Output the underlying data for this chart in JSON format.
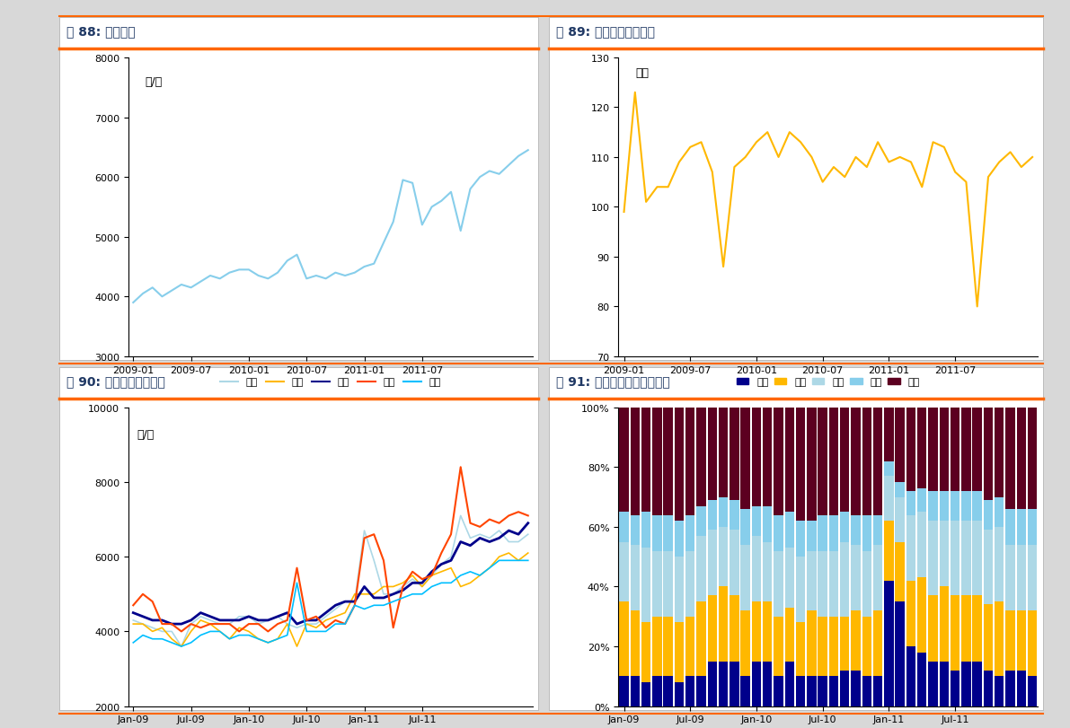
{
  "fig88_title": "图 88: 长沙均价",
  "fig89_title": "图 89: 长沙套均成交面积",
  "fig90_title": "图 90: 长沙分区成交均价",
  "fig91_title": "图 91: 长沙分区成交面积占比",
  "fig88_ylabel": "元/平",
  "fig88_ylim": [
    3000,
    8000
  ],
  "fig88_yticks": [
    3000,
    4000,
    5000,
    6000,
    7000,
    8000
  ],
  "fig88_color": "#87CEEB",
  "fig88_data": [
    3900,
    4050,
    4150,
    4000,
    4100,
    4200,
    4150,
    4250,
    4350,
    4300,
    4400,
    4450,
    4450,
    4350,
    4300,
    4400,
    4600,
    4700,
    4300,
    4350,
    4300,
    4400,
    4350,
    4400,
    4500,
    4550,
    4900,
    5250,
    5950,
    5900,
    5200,
    5500,
    5600,
    5750,
    5100,
    5800,
    6000,
    6100,
    6050,
    6200,
    6350,
    6450
  ],
  "fig89_ylabel": "平米",
  "fig89_ylim": [
    70,
    130
  ],
  "fig89_yticks": [
    70,
    80,
    90,
    100,
    110,
    120,
    130
  ],
  "fig89_color": "#FFB800",
  "fig89_data": [
    99,
    123,
    101,
    104,
    104,
    109,
    112,
    113,
    107,
    88,
    108,
    110,
    113,
    115,
    110,
    115,
    113,
    110,
    105,
    108,
    106,
    110,
    108,
    113,
    109,
    110,
    109,
    104,
    113,
    112,
    107,
    105,
    80,
    106,
    109,
    111,
    108,
    110
  ],
  "fig88_xticks": [
    "2009-01",
    "2009-07",
    "2010-01",
    "2010-07",
    "2011-01",
    "2011-07"
  ],
  "fig89_xticks": [
    "2009-01",
    "2009-07",
    "2010-01",
    "2010-07",
    "2011-01",
    "2011-07"
  ],
  "fig90_xticks": [
    "Jan-09",
    "Jul-09",
    "Jan-10",
    "Jul-10",
    "Jan-11",
    "Jul-11"
  ],
  "fig91_xticks": [
    "Jan-09",
    "Jul-09",
    "Jan-10",
    "Jul-10",
    "Jan-11",
    "Jul-11"
  ],
  "fig90_ylabel": "元/平",
  "fig90_ylim": [
    2000,
    10000
  ],
  "fig90_yticks": [
    2000,
    4000,
    6000,
    8000,
    10000
  ],
  "fig90_legend": [
    "芚蓉",
    "天心",
    "雨花",
    "开福",
    "岳麓"
  ],
  "fig90_colors": [
    "#ADD8E6",
    "#FFB800",
    "#00008B",
    "#FF4500",
    "#00BFFF"
  ],
  "fig90_data": {
    "furong": [
      4300,
      4200,
      4100,
      4000,
      4000,
      3600,
      4200,
      4400,
      4300,
      4200,
      4200,
      4400,
      4400,
      4200,
      4300,
      4400,
      4200,
      4100,
      4200,
      4200,
      4400,
      4600,
      4800,
      4800,
      6700,
      5900,
      5000,
      5000,
      5200,
      5400,
      5200,
      5500,
      5800,
      6000,
      7100,
      6500,
      6600,
      6500,
      6700,
      6400,
      6400,
      6600
    ],
    "tianxin": [
      4200,
      4200,
      4000,
      4100,
      3800,
      3600,
      4000,
      4300,
      4200,
      4000,
      3800,
      4100,
      4000,
      3800,
      3700,
      3800,
      4200,
      3600,
      4200,
      4100,
      4300,
      4400,
      4500,
      5000,
      5000,
      5000,
      5200,
      5200,
      5300,
      5500,
      5200,
      5500,
      5600,
      5700,
      5200,
      5300,
      5500,
      5700,
      6000,
      6100,
      5900,
      6100
    ],
    "yuhua": [
      4500,
      4400,
      4300,
      4300,
      4200,
      4200,
      4300,
      4500,
      4400,
      4300,
      4300,
      4300,
      4400,
      4300,
      4300,
      4400,
      4500,
      4200,
      4300,
      4300,
      4500,
      4700,
      4800,
      4800,
      5200,
      4900,
      4900,
      5000,
      5100,
      5300,
      5300,
      5600,
      5800,
      5900,
      6400,
      6300,
      6500,
      6400,
      6500,
      6700,
      6600,
      6900
    ],
    "kaifu": [
      4700,
      5000,
      4800,
      4200,
      4200,
      4000,
      4200,
      4100,
      4200,
      4200,
      4200,
      4000,
      4200,
      4200,
      4000,
      4200,
      4300,
      5700,
      4300,
      4400,
      4100,
      4300,
      4200,
      4700,
      6500,
      6600,
      5900,
      4100,
      5200,
      5600,
      5400,
      5500,
      6100,
      6600,
      8400,
      6900,
      6800,
      7000,
      6900,
      7100,
      7200,
      7100
    ],
    "yuelv": [
      3700,
      3900,
      3800,
      3800,
      3700,
      3600,
      3700,
      3900,
      4000,
      4000,
      3800,
      3900,
      3900,
      3800,
      3700,
      3800,
      3900,
      5300,
      4000,
      4000,
      4000,
      4200,
      4200,
      4700,
      4600,
      4700,
      4700,
      4800,
      4900,
      5000,
      5000,
      5200,
      5300,
      5300,
      5500,
      5600,
      5500,
      5700,
      5900,
      5900,
      5900,
      5900
    ]
  },
  "fig91_legend": [
    "芚蓉",
    "天心",
    "雨花",
    "开福",
    "岳麓"
  ],
  "fig91_colors": [
    "#00008B",
    "#FFB800",
    "#ADD8E6",
    "#87CEEB",
    "#5C0020"
  ],
  "fig91_data": {
    "furong": [
      0.1,
      0.1,
      0.08,
      0.1,
      0.1,
      0.08,
      0.1,
      0.1,
      0.15,
      0.15,
      0.15,
      0.1,
      0.15,
      0.15,
      0.1,
      0.15,
      0.1,
      0.1,
      0.1,
      0.1,
      0.12,
      0.12,
      0.1,
      0.1,
      0.42,
      0.35,
      0.2,
      0.18,
      0.15,
      0.15,
      0.12,
      0.15,
      0.15,
      0.12,
      0.1,
      0.12,
      0.12,
      0.1
    ],
    "tianxin": [
      0.25,
      0.22,
      0.2,
      0.2,
      0.2,
      0.2,
      0.2,
      0.25,
      0.22,
      0.25,
      0.22,
      0.22,
      0.2,
      0.2,
      0.2,
      0.18,
      0.18,
      0.22,
      0.2,
      0.2,
      0.18,
      0.2,
      0.2,
      0.22,
      0.2,
      0.2,
      0.22,
      0.25,
      0.22,
      0.25,
      0.25,
      0.22,
      0.22,
      0.22,
      0.25,
      0.2,
      0.2,
      0.22
    ],
    "yuhua": [
      0.2,
      0.22,
      0.25,
      0.22,
      0.22,
      0.22,
      0.22,
      0.22,
      0.22,
      0.2,
      0.22,
      0.22,
      0.22,
      0.2,
      0.22,
      0.2,
      0.22,
      0.2,
      0.22,
      0.22,
      0.25,
      0.22,
      0.22,
      0.22,
      0.15,
      0.15,
      0.22,
      0.22,
      0.25,
      0.22,
      0.25,
      0.25,
      0.25,
      0.25,
      0.25,
      0.22,
      0.22,
      0.22
    ],
    "kaifu": [
      0.1,
      0.1,
      0.12,
      0.12,
      0.12,
      0.12,
      0.12,
      0.1,
      0.1,
      0.1,
      0.1,
      0.12,
      0.1,
      0.12,
      0.12,
      0.12,
      0.12,
      0.1,
      0.12,
      0.12,
      0.1,
      0.1,
      0.12,
      0.1,
      0.05,
      0.05,
      0.08,
      0.08,
      0.1,
      0.1,
      0.1,
      0.1,
      0.1,
      0.1,
      0.1,
      0.12,
      0.12,
      0.12
    ],
    "yuelv": [
      0.35,
      0.36,
      0.35,
      0.36,
      0.36,
      0.38,
      0.36,
      0.33,
      0.31,
      0.3,
      0.31,
      0.34,
      0.33,
      0.33,
      0.36,
      0.35,
      0.38,
      0.38,
      0.36,
      0.36,
      0.35,
      0.36,
      0.36,
      0.36,
      0.18,
      0.25,
      0.28,
      0.27,
      0.28,
      0.28,
      0.28,
      0.28,
      0.28,
      0.31,
      0.3,
      0.34,
      0.34,
      0.34
    ]
  },
  "title_color": "#1F3864",
  "title_bar_color": "#FF6600",
  "bg_color": "#FFFFFF",
  "outer_bg": "#D8D8D8"
}
